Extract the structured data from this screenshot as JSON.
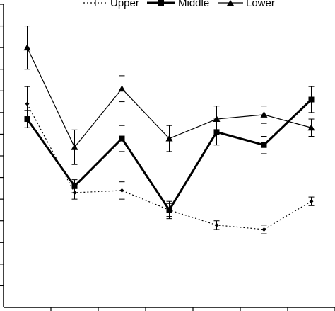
{
  "chart_data": {
    "type": "line",
    "x": [
      1,
      2,
      3,
      4,
      5,
      6,
      7
    ],
    "xlim": [
      0.5,
      7.5
    ],
    "ylim": [
      0,
      14
    ],
    "grid": false,
    "legend_position": "top",
    "series": [
      {
        "name": "Upper",
        "style": "dotted",
        "marker": "diamond",
        "values": [
          9.4,
          5.3,
          5.4,
          4.5,
          3.8,
          3.6,
          4.9
        ],
        "errors": [
          0.8,
          0.3,
          0.4,
          0.3,
          0.2,
          0.2,
          0.2
        ]
      },
      {
        "name": "Middle",
        "style": "bold",
        "marker": "square",
        "values": [
          8.7,
          5.6,
          7.8,
          4.5,
          8.1,
          7.5,
          9.6
        ],
        "errors": [
          0.4,
          0.3,
          0.6,
          0.4,
          0.6,
          0.4,
          0.6
        ]
      },
      {
        "name": "Lower",
        "style": "thin",
        "marker": "triangle",
        "values": [
          12.0,
          7.4,
          10.1,
          7.8,
          8.7,
          8.9,
          8.3
        ],
        "errors": [
          1.0,
          0.8,
          0.6,
          0.6,
          0.6,
          0.4,
          0.4
        ]
      }
    ],
    "colors": {
      "line": "#000000",
      "background": "#ffffff"
    }
  }
}
